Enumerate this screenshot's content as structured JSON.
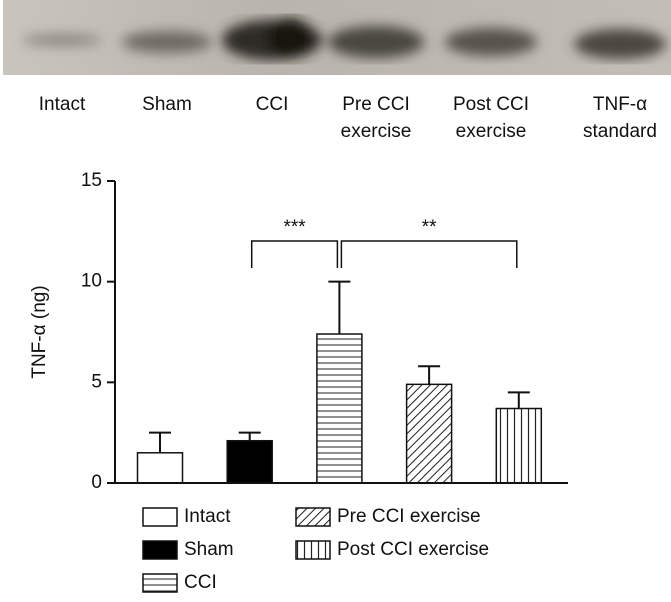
{
  "blot": {
    "lanes": [
      [
        "Intact"
      ],
      [
        "Sham"
      ],
      [
        "CCI"
      ],
      [
        "Pre CCI",
        "exercise"
      ],
      [
        "Post CCI",
        "exercise"
      ],
      [
        "TNF-α",
        "standard"
      ]
    ]
  },
  "chart_data": {
    "type": "bar",
    "y_label": "TNF-α (ng)",
    "categories": [
      "Intact",
      "Sham",
      "CCI",
      "Pre CCI exercise",
      "Post CCI exercise"
    ],
    "values": [
      1.5,
      2.1,
      7.4,
      4.9,
      3.7
    ],
    "errors": [
      1.0,
      0.4,
      2.6,
      0.9,
      0.8
    ],
    "fills": [
      "white",
      "black",
      "horizontal",
      "diagonal",
      "vertical"
    ],
    "ylim": [
      0,
      15
    ],
    "yticks": [
      0,
      5,
      10,
      15
    ],
    "annotations": [
      {
        "text": "***",
        "from": 1,
        "to": 2
      },
      {
        "text": "**",
        "from": 2,
        "to": 4
      }
    ]
  }
}
